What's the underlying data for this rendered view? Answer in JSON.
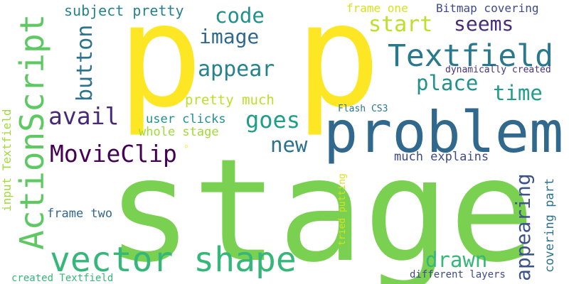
{
  "words": [
    {
      "text": "stage",
      "color": "#7ad151"
    },
    {
      "text": "p",
      "color": "#fde725"
    },
    {
      "text": "p",
      "color": "#fde725"
    },
    {
      "text": "problem",
      "color": "#31688e"
    },
    {
      "text": "ActionScript",
      "color": "#5ec962"
    },
    {
      "text": "vector shape",
      "color": "#35b779"
    },
    {
      "text": "Textfield",
      "color": "#2a788e"
    },
    {
      "text": "MovieClip",
      "color": "#440154"
    },
    {
      "text": "appear",
      "color": "#26828e"
    },
    {
      "text": "image",
      "color": "#31688e"
    },
    {
      "text": "code",
      "color": "#21918c"
    },
    {
      "text": "start",
      "color": "#bddf26"
    },
    {
      "text": "seems",
      "color": "#472d7b"
    },
    {
      "text": "place",
      "color": "#21918c"
    },
    {
      "text": "time",
      "color": "#1f9e89"
    },
    {
      "text": "button",
      "color": "#2c728e"
    },
    {
      "text": "avail",
      "color": "#482878"
    },
    {
      "text": "goes",
      "color": "#1f9e89"
    },
    {
      "text": "new",
      "color": "#2c728e"
    },
    {
      "text": "drawn",
      "color": "#35b779"
    },
    {
      "text": "appearing",
      "color": "#3b528b"
    },
    {
      "text": "subject pretty",
      "color": "#26828e"
    },
    {
      "text": "pretty much",
      "color": "#bddf26"
    },
    {
      "text": "user clicks",
      "color": "#21918c"
    },
    {
      "text": "whole stage",
      "color": "#a0da39"
    },
    {
      "text": "frame one",
      "color": "#d8e219"
    },
    {
      "text": "Bitmap covering",
      "color": "#3e4a89"
    },
    {
      "text": "dynamically created",
      "color": "#46327e"
    },
    {
      "text": "Flash CS3",
      "color": "#2a788e"
    },
    {
      "text": "much explains",
      "color": "#3e4a89"
    },
    {
      "text": "covering part",
      "color": "#2c728e"
    },
    {
      "text": "input Textfield",
      "color": "#a0da39"
    },
    {
      "text": "frame two",
      "color": "#31688e"
    },
    {
      "text": "tried putting",
      "color": "#d8e219"
    },
    {
      "text": "different layers",
      "color": "#3e4a89"
    },
    {
      "text": "created Textfield",
      "color": "#35b779"
    },
    {
      "text": "p",
      "color": "#fde725"
    }
  ]
}
